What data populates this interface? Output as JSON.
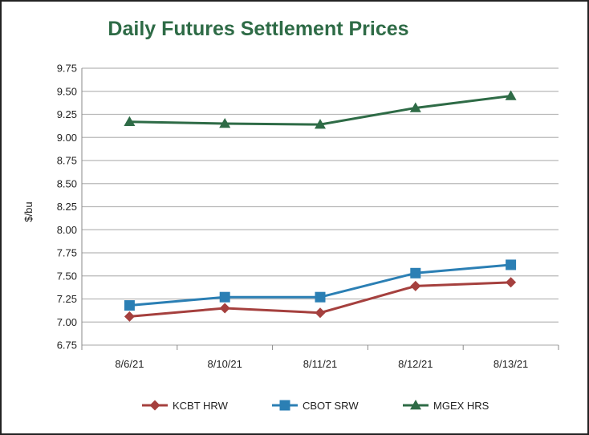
{
  "chart_data": {
    "type": "line",
    "title": "Daily Futures Settlement Prices",
    "xlabel": "",
    "ylabel": "$/bu",
    "categories": [
      "8/6/21",
      "8/10/21",
      "8/11/21",
      "8/12/21",
      "8/13/21"
    ],
    "ylim": [
      6.75,
      9.75
    ],
    "yticks": [
      "6.75",
      "7.00",
      "7.25",
      "7.50",
      "7.75",
      "8.00",
      "8.25",
      "8.50",
      "8.75",
      "9.00",
      "9.25",
      "9.50",
      "9.75"
    ],
    "grid": true,
    "legend_position": "bottom",
    "series": [
      {
        "name": "KCBT HRW",
        "color": "#a5403e",
        "marker": "diamond",
        "values": [
          7.06,
          7.15,
          7.1,
          7.39,
          7.43
        ]
      },
      {
        "name": "CBOT SRW",
        "color": "#2b7fb4",
        "marker": "square",
        "values": [
          7.18,
          7.27,
          7.27,
          7.53,
          7.62
        ]
      },
      {
        "name": "MGEX HRS",
        "color": "#2e6b46",
        "marker": "triangle",
        "values": [
          9.17,
          9.15,
          9.14,
          9.32,
          9.45
        ]
      }
    ]
  }
}
